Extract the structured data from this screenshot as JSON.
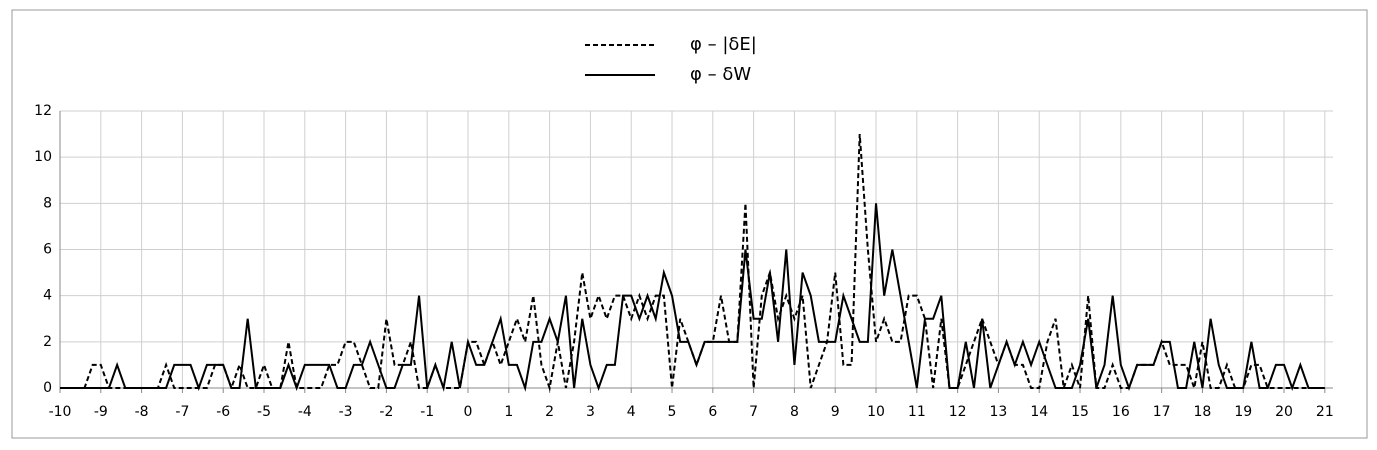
{
  "chart_data": {
    "type": "line",
    "x": [
      -10,
      -9.8,
      -9.6,
      -9.4,
      -9.2,
      -9,
      -8.8,
      -8.6,
      -8.4,
      -8.2,
      -8,
      -7.8,
      -7.6,
      -7.4,
      -7.2,
      -7,
      -6.8,
      -6.6,
      -6.4,
      -6.2,
      -6,
      -5.8,
      -5.6,
      -5.4,
      -5.2,
      -5,
      -4.8,
      -4.6,
      -4.4,
      -4.2,
      -4,
      -3.8,
      -3.6,
      -3.4,
      -3.2,
      -3,
      -2.8,
      -2.6,
      -2.4,
      -2.2,
      -2,
      -1.8,
      -1.6,
      -1.4,
      -1.2,
      -1,
      -0.8,
      -0.6,
      -0.4,
      -0.2,
      0,
      0.2,
      0.4,
      0.6,
      0.8,
      1,
      1.2,
      1.4,
      1.6,
      1.8,
      2,
      2.2,
      2.4,
      2.6,
      2.8,
      3,
      3.2,
      3.4,
      3.6,
      3.8,
      4,
      4.2,
      4.4,
      4.6,
      4.8,
      5,
      5.2,
      5.4,
      5.6,
      5.8,
      6,
      6.2,
      6.4,
      6.6,
      6.8,
      7,
      7.2,
      7.4,
      7.6,
      7.8,
      8,
      8.2,
      8.4,
      8.6,
      8.8,
      9,
      9.2,
      9.4,
      9.6,
      9.8,
      10,
      10.2,
      10.4,
      10.6,
      10.8,
      11,
      11.2,
      11.4,
      11.6,
      11.8,
      12,
      12.2,
      12.4,
      12.6,
      12.8,
      13,
      13.2,
      13.4,
      13.6,
      13.8,
      14,
      14.2,
      14.4,
      14.6,
      14.8,
      15,
      15.2,
      15.4,
      15.6,
      15.8,
      16,
      16.2,
      16.4,
      16.6,
      16.8,
      17,
      17.2,
      17.4,
      17.6,
      17.8,
      18,
      18.2,
      18.4,
      18.6,
      18.8,
      19,
      19.2,
      19.4,
      19.6,
      19.8,
      20,
      20.2,
      20.4,
      20.6,
      20.8,
      21
    ],
    "series": [
      {
        "name": "φ – |δE|",
        "color": "#000000",
        "dash": true,
        "values": [
          0,
          0,
          0,
          0,
          1,
          1,
          0,
          0,
          0,
          0,
          0,
          0,
          0,
          1,
          0,
          0,
          0,
          0,
          0,
          1,
          1,
          0,
          1,
          0,
          0,
          1,
          0,
          0,
          2,
          0,
          0,
          0,
          0,
          1,
          1,
          2,
          2,
          1,
          0,
          0,
          3,
          1,
          1,
          2,
          0,
          0,
          1,
          0,
          0,
          0,
          2,
          2,
          1,
          2,
          1,
          2,
          3,
          2,
          4,
          1,
          0,
          2,
          0,
          2,
          5,
          3,
          4,
          3,
          4,
          4,
          3,
          4,
          3,
          4,
          4,
          0,
          3,
          2,
          1,
          2,
          2,
          4,
          2,
          2,
          8,
          0,
          4,
          5,
          3,
          4,
          3,
          4,
          0,
          1,
          2,
          5,
          1,
          1,
          11,
          6,
          2,
          3,
          2,
          2,
          4,
          4,
          3,
          0,
          3,
          0,
          0,
          1,
          2,
          3,
          2,
          1,
          2,
          1,
          1,
          0,
          0,
          2,
          3,
          0,
          1,
          0,
          4,
          0,
          0,
          1,
          0,
          0,
          1,
          1,
          1,
          2,
          1,
          1,
          1,
          0,
          2,
          0,
          0,
          1,
          0,
          0,
          1,
          1,
          0,
          0,
          0,
          0,
          0,
          0,
          0,
          0
        ]
      },
      {
        "name": "φ – δW",
        "color": "#000000",
        "dash": false,
        "values": [
          0,
          0,
          0,
          0,
          0,
          0,
          0,
          1,
          0,
          0,
          0,
          0,
          0,
          0,
          1,
          1,
          1,
          0,
          1,
          1,
          1,
          0,
          0,
          3,
          0,
          0,
          0,
          0,
          1,
          0,
          1,
          1,
          1,
          1,
          0,
          0,
          1,
          1,
          2,
          1,
          0,
          0,
          1,
          1,
          4,
          0,
          1,
          0,
          2,
          0,
          2,
          1,
          1,
          2,
          3,
          1,
          1,
          0,
          2,
          2,
          3,
          2,
          4,
          0,
          3,
          1,
          0,
          1,
          1,
          4,
          4,
          3,
          4,
          3,
          5,
          4,
          2,
          2,
          1,
          2,
          2,
          2,
          2,
          2,
          6,
          3,
          3,
          5,
          2,
          6,
          1,
          5,
          4,
          2,
          2,
          2,
          4,
          3,
          2,
          2,
          8,
          4,
          6,
          4,
          2,
          0,
          3,
          3,
          4,
          0,
          0,
          2,
          0,
          3,
          0,
          1,
          2,
          1,
          2,
          1,
          2,
          1,
          0,
          0,
          0,
          1,
          3,
          0,
          1,
          4,
          1,
          0,
          1,
          1,
          1,
          2,
          2,
          0,
          0,
          2,
          0,
          3,
          1,
          0,
          0,
          0,
          2,
          0,
          0,
          1,
          1,
          0,
          1,
          0,
          0,
          0
        ]
      }
    ],
    "xlim": [
      -10,
      21.2
    ],
    "xticks": [
      -10,
      -9,
      -8,
      -7,
      -6,
      -5,
      -4,
      -3,
      -2,
      -1,
      0,
      1,
      2,
      3,
      4,
      5,
      6,
      7,
      8,
      9,
      10,
      11,
      12,
      13,
      14,
      15,
      16,
      17,
      18,
      19,
      20,
      21
    ],
    "ylim": [
      0,
      12
    ],
    "yticks": [
      0,
      2,
      4,
      6,
      8,
      10,
      12
    ],
    "grid": true,
    "legend": "top"
  }
}
